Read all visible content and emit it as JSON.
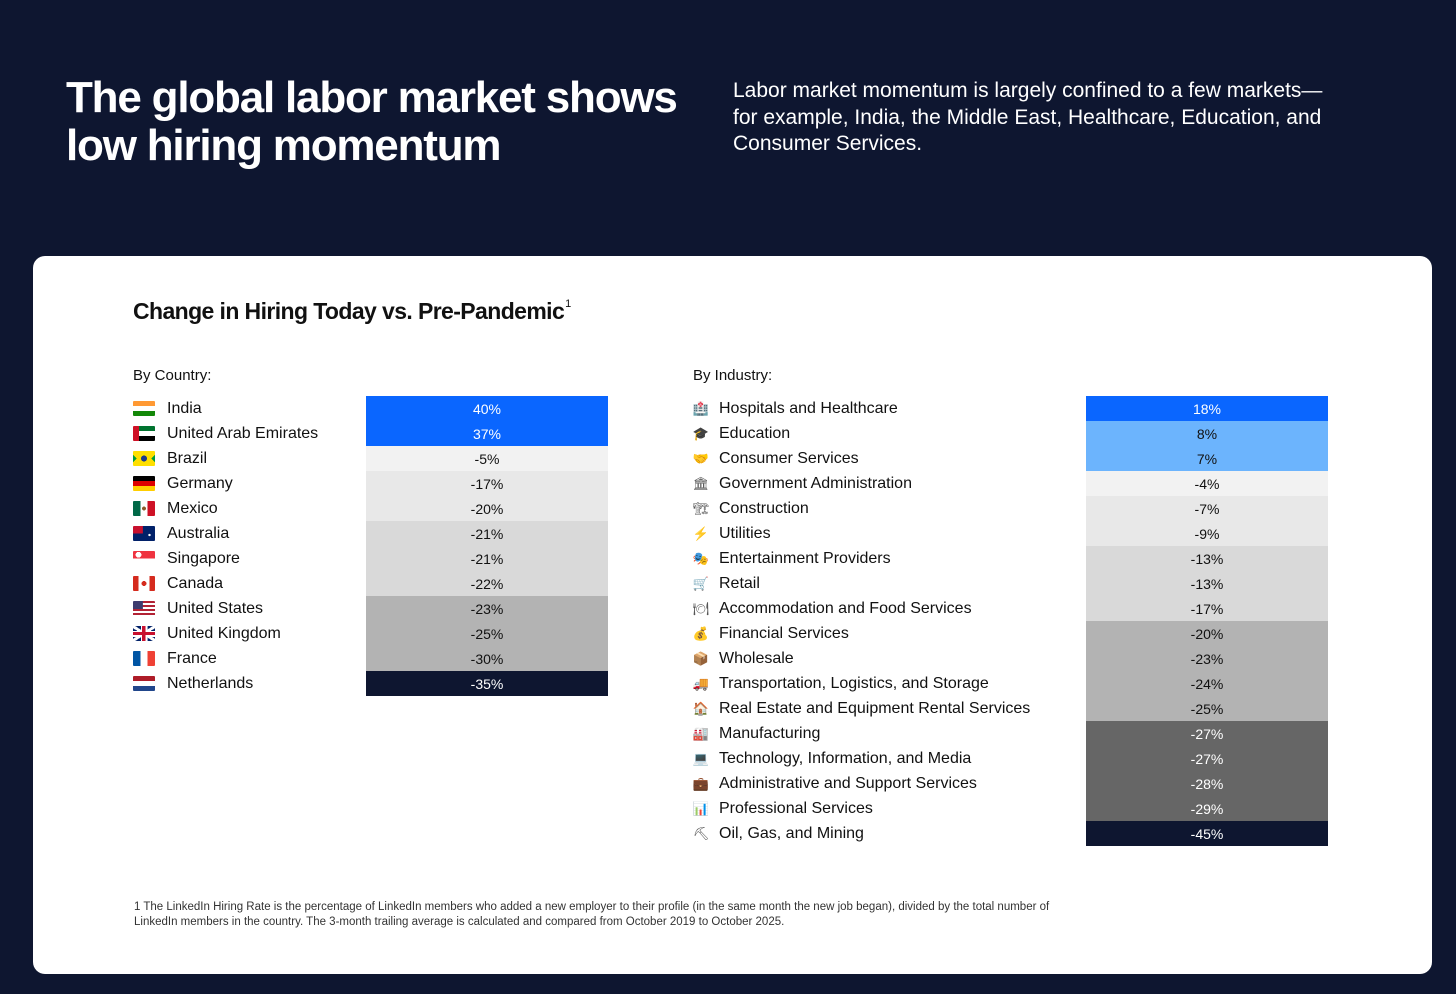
{
  "header": {
    "title": "The global labor market shows low hiring momentum",
    "subtitle": "Labor market momentum is largely confined to a few markets—for example, India, the Middle East, Healthcare, Education, and Consumer Services."
  },
  "chart_data": {
    "type": "table",
    "title": "Change in Hiring Today vs. Pre-Pandemic",
    "title_footnote_mark": "1",
    "by_country": {
      "label": "By Country:",
      "rows": [
        {
          "name": "India",
          "value": 40,
          "label": "40%",
          "flag": "flag-india"
        },
        {
          "name": "United Arab Emirates",
          "value": 37,
          "label": "37%",
          "flag": "flag-uae"
        },
        {
          "name": "Brazil",
          "value": -5,
          "label": "-5%",
          "flag": "flag-brazil"
        },
        {
          "name": "Germany",
          "value": -17,
          "label": "-17%",
          "flag": "flag-germany"
        },
        {
          "name": "Mexico",
          "value": -20,
          "label": "-20%",
          "flag": "flag-mexico"
        },
        {
          "name": "Australia",
          "value": -21,
          "label": "-21%",
          "flag": "flag-australia"
        },
        {
          "name": "Singapore",
          "value": -21,
          "label": "-21%",
          "flag": "flag-singapore"
        },
        {
          "name": "Canada",
          "value": -22,
          "label": "-22%",
          "flag": "flag-canada"
        },
        {
          "name": "United States",
          "value": -23,
          "label": "-23%",
          "flag": "flag-us"
        },
        {
          "name": "United Kingdom",
          "value": -25,
          "label": "-25%",
          "flag": "flag-uk"
        },
        {
          "name": "France",
          "value": -30,
          "label": "-30%",
          "flag": "flag-france"
        },
        {
          "name": "Netherlands",
          "value": -35,
          "label": "-35%",
          "flag": "flag-netherlands"
        }
      ]
    },
    "by_industry": {
      "label": "By Industry:",
      "rows": [
        {
          "name": "Hospitals and Healthcare",
          "value": 18,
          "label": "18%",
          "icon": "hospital-icon",
          "glyph": "🏥"
        },
        {
          "name": "Education",
          "value": 8,
          "label": "8%",
          "icon": "graduation-cap-icon",
          "glyph": "🎓"
        },
        {
          "name": "Consumer Services",
          "value": 7,
          "label": "7%",
          "icon": "handshake-icon",
          "glyph": "🤝"
        },
        {
          "name": "Government Administration",
          "value": -4,
          "label": "-4%",
          "icon": "government-building-icon",
          "glyph": "🏛"
        },
        {
          "name": "Construction",
          "value": -7,
          "label": "-7%",
          "icon": "crane-icon",
          "glyph": "🏗"
        },
        {
          "name": "Utilities",
          "value": -9,
          "label": "-9%",
          "icon": "lightning-icon",
          "glyph": "⚡"
        },
        {
          "name": "Entertainment Providers",
          "value": -13,
          "label": "-13%",
          "icon": "theater-masks-icon",
          "glyph": "🎭"
        },
        {
          "name": "Retail",
          "value": -13,
          "label": "-13%",
          "icon": "shopping-cart-icon",
          "glyph": "🛒"
        },
        {
          "name": "Accommodation and Food Services",
          "value": -17,
          "label": "-17%",
          "icon": "plate-icon",
          "glyph": "🍽"
        },
        {
          "name": "Financial Services",
          "value": -20,
          "label": "-20%",
          "icon": "money-bag-icon",
          "glyph": "💰"
        },
        {
          "name": "Wholesale",
          "value": -23,
          "label": "-23%",
          "icon": "package-icon",
          "glyph": "📦"
        },
        {
          "name": "Transportation, Logistics, and Storage",
          "value": -24,
          "label": "-24%",
          "icon": "truck-icon",
          "glyph": "🚚"
        },
        {
          "name": "Real Estate and Equipment Rental Services",
          "value": -25,
          "label": "-25%",
          "icon": "house-icon",
          "glyph": "🏠"
        },
        {
          "name": "Manufacturing",
          "value": -27,
          "label": "-27%",
          "icon": "factory-icon",
          "glyph": "🏭"
        },
        {
          "name": "Technology, Information, and Media",
          "value": -27,
          "label": "-27%",
          "icon": "laptop-icon",
          "glyph": "💻"
        },
        {
          "name": "Administrative and Support Services",
          "value": -28,
          "label": "-28%",
          "icon": "briefcase-icon",
          "glyph": "💼"
        },
        {
          "name": "Professional Services",
          "value": -29,
          "label": "-29%",
          "icon": "bar-chart-icon",
          "glyph": "📊"
        },
        {
          "name": "Oil, Gas, and Mining",
          "value": -45,
          "label": "-45%",
          "icon": "pickaxe-icon",
          "glyph": "⛏"
        }
      ]
    }
  },
  "colors": {
    "background": "#0e1630",
    "strong_positive": "#0a66ff",
    "positive": "#6cb4fd",
    "slight_negative": "#f2f2f2",
    "mild_negative": "#e8e8e8",
    "moderate_negative": "#d9d9d9",
    "strong_negative": "#b3b3b3",
    "severe_negative": "#666666",
    "extreme_negative": "#0e1630"
  },
  "footnote": "1 The LinkedIn Hiring Rate is the percentage of LinkedIn members who added a new employer to their profile (in the same month the new job began), divided by the total number of LinkedIn members in the country. The 3-month trailing average is calculated and compared from October 2019 to October 2025."
}
